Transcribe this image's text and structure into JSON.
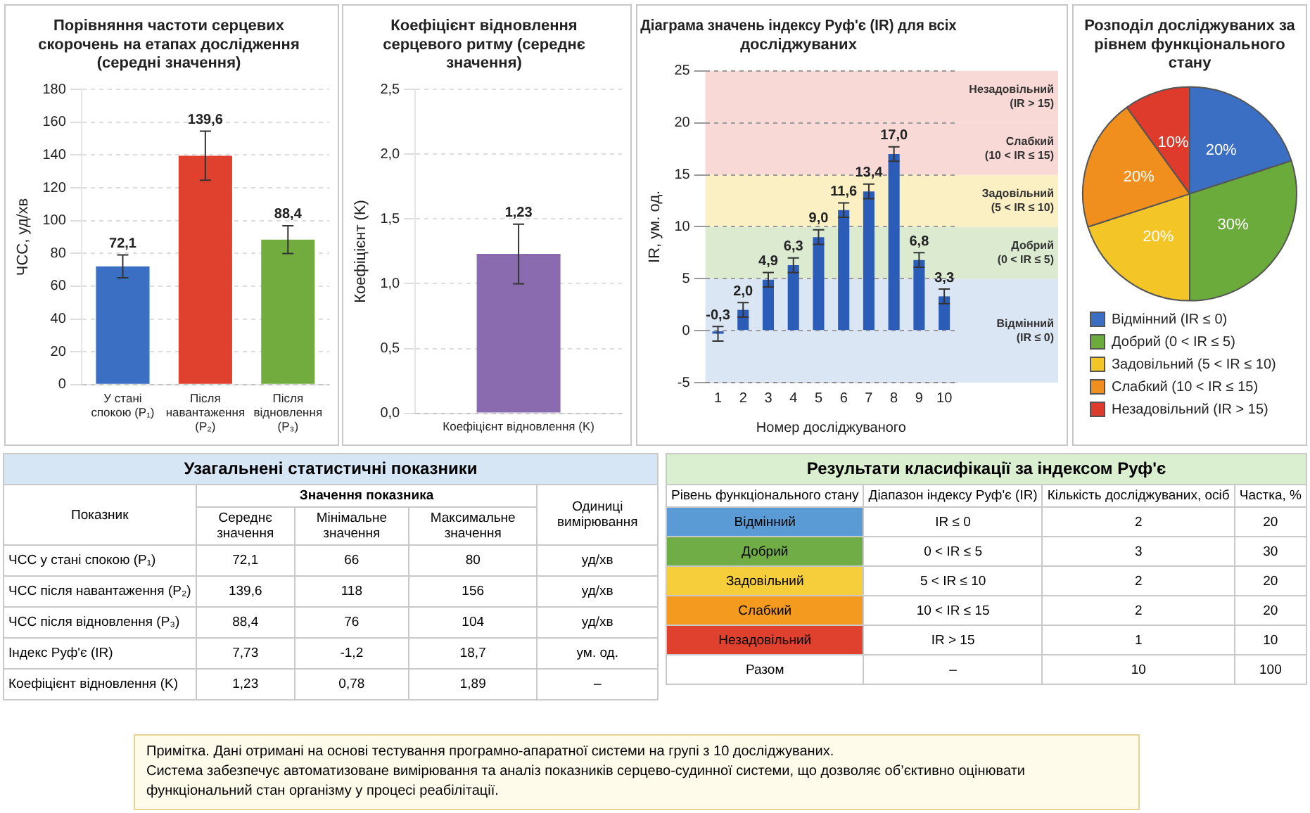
{
  "chart_data": [
    {
      "type": "bar",
      "title": "Порівняння частоти серцевих скорочень на етапах дослідження (середні значення)",
      "ylabel": "ЧСС, уд/хв",
      "categories": [
        "У стані спокою (P₁)",
        "Після навантаження (P₂)",
        "Після відновлення (P₃)"
      ],
      "values": [
        72.1,
        139.6,
        88.4
      ],
      "colors": [
        "#3a6fc4",
        "#e0402e",
        "#72ac3f"
      ],
      "errors": [
        7,
        15,
        8.5
      ],
      "value_labels": [
        "72,1",
        "139,6",
        "88,4"
      ],
      "ylim": [
        0,
        180
      ],
      "yticks": [
        0,
        20,
        40,
        60,
        80,
        100,
        120,
        140,
        160,
        180
      ],
      "grid": "y"
    },
    {
      "type": "bar",
      "title": "Коефіцієнт відновлення серцевого ритму (середнє значення)",
      "ylabel": "Коефіцієнт (K)",
      "categories": [
        "Коефіцієнт відновлення (K)"
      ],
      "values": [
        1.23
      ],
      "colors": [
        "#8a6bb0"
      ],
      "errors": [
        0.23
      ],
      "value_labels": [
        "1,23"
      ],
      "ylim": [
        0,
        2.5
      ],
      "yticks": [
        {
          "value": 0,
          "label": "0,0"
        },
        {
          "value": 0.5,
          "label": "0,5"
        },
        {
          "value": 1,
          "label": "1,0"
        },
        {
          "value": 1.5,
          "label": "1,5"
        },
        {
          "value": 2,
          "label": "2,0"
        },
        {
          "value": 2.5,
          "label": "2,5"
        }
      ],
      "grid": "y"
    },
    {
      "type": "bar",
      "title": "Діаграма значень індексу Руф'є (IR) для всіх досліджуваних",
      "xlabel": "Номер досліджуваного",
      "ylabel": "IR, ум. од.",
      "categories": [
        "1",
        "2",
        "3",
        "4",
        "5",
        "6",
        "7",
        "8",
        "9",
        "10"
      ],
      "values": [
        -0.3,
        2.0,
        4.9,
        6.3,
        9.0,
        11.6,
        13.4,
        17.0,
        6.8,
        3.3
      ],
      "colors": [
        "#2a5cb8",
        "#2a5cb8",
        "#2a5cb8",
        "#2a5cb8",
        "#2a5cb8",
        "#2a5cb8",
        "#2a5cb8",
        "#2a5cb8",
        "#2a5cb8",
        "#2a5cb8"
      ],
      "errors": [
        0.7,
        0.7,
        0.7,
        0.7,
        0.7,
        0.7,
        0.7,
        0.7,
        0.7,
        0.7
      ],
      "value_labels": [
        "-0,3",
        "2,0",
        "4,9",
        "6,3",
        "9,0",
        "11,6",
        "13,4",
        "17,0",
        "6,8",
        "3,3"
      ],
      "ylim": [
        -5,
        25
      ],
      "yticks": [
        -5,
        0,
        5,
        10,
        15,
        20,
        25
      ],
      "grid": "y",
      "bands": [
        {
          "axis": "y",
          "from": -5,
          "to": 5,
          "label": "Відмінний (IR ≤ 0)",
          "color": "#dbe6f4"
        },
        {
          "axis": "y",
          "from": 5,
          "to": 10,
          "label": "Добрий (0 < IR ≤ 5)",
          "color": "#dcebd0"
        },
        {
          "axis": "y",
          "from": 10,
          "to": 15,
          "label": "Задовільний (5 < IR ≤ 10)",
          "color": "#fbefc4"
        },
        {
          "axis": "y",
          "from": 15,
          "to": 20,
          "label": "Слабкий (10 < IR ≤ 15)",
          "color": "#f9d9d6"
        },
        {
          "axis": "y",
          "from": 20,
          "to": 25,
          "label": "Незадовільний (IR > 15)",
          "color": "#f9d9d6"
        }
      ]
    },
    {
      "type": "pie",
      "title": "Розподіл досліджуваних за рівнем функціонального стану",
      "categories": [
        "Відмінний (IR ≤ 0)",
        "Добрий (0 < IR ≤ 5)",
        "Задовільний (5 < IR ≤ 10)",
        "Слабкий (10 < IR ≤ 15)",
        "Незадовільний (IR > 15)"
      ],
      "values": [
        20,
        30,
        20,
        20,
        10
      ],
      "colors": [
        "#3b6fc4",
        "#6aab3c",
        "#f4c526",
        "#f18f1e",
        "#de3b2c"
      ],
      "value_labels": [
        "20%",
        "30%",
        "20%",
        "20%",
        "10%"
      ],
      "legend": "bottom"
    },
    {
      "type": "other",
      "title": "Узагальнені статистичні показники",
      "subtitle": "Значення показника",
      "categories": [
        "Показник",
        "Середнє значення",
        "Мінімальне значення",
        "Максимальне значення",
        "Одиниці вимірювання"
      ],
      "y_categories": [
        "ЧСС у стані спокою (P₁)",
        "ЧСС після навантаження (P₂)",
        "ЧСС після відновлення (P₃)",
        "Індекс Руф'є (IR)",
        "Коефіцієнт відновлення (K)"
      ],
      "cell_labels": [
        [
          "72,1",
          "66",
          "80",
          "уд/хв"
        ],
        [
          "139,6",
          "118",
          "156",
          "уд/хв"
        ],
        [
          "88,4",
          "76",
          "104",
          "уд/хв"
        ],
        [
          "7,73",
          "-1,2",
          "18,7",
          "ум. од."
        ],
        [
          "1,23",
          "0,78",
          "1,89",
          "–"
        ]
      ]
    },
    {
      "type": "other",
      "title": "Результати класифікації за індексом Руф'є",
      "categories": [
        "Рівень функціонального стану",
        "Діапазон індексу Руф'є (IR)",
        "Кількість досліджуваних, осіб",
        "Частка, %"
      ],
      "y_categories": [
        "Відмінний",
        "Добрий",
        "Задовільний",
        "Слабкий",
        "Незадовільний",
        "Разом"
      ],
      "colors": [
        "#5b9bd5",
        "#70ad47",
        "#f6cd3a",
        "#f39a1f",
        "#e0412f",
        "#ffffff"
      ],
      "cell_labels": [
        [
          "IR ≤ 0",
          "2",
          "20"
        ],
        [
          "0 < IR ≤ 5",
          "3",
          "30"
        ],
        [
          "5 < IR ≤ 10",
          "2",
          "20"
        ],
        [
          "10 < IR ≤ 15",
          "2",
          "20"
        ],
        [
          "IR > 15",
          "1",
          "10"
        ],
        [
          "–",
          "10",
          "100"
        ]
      ]
    },
    {
      "type": "other",
      "annotations": [
        "Примітка. Дані отримані на основі тестування програмно-апаратної системи на групі з 10 досліджуваних.",
        "Система забезпечує автоматизоване вимірювання та аналіз показників серцево-судинної системи, що дозволяє об’єктивно оцінювати функціональний стан організму у процесі реабілітації."
      ]
    }
  ]
}
